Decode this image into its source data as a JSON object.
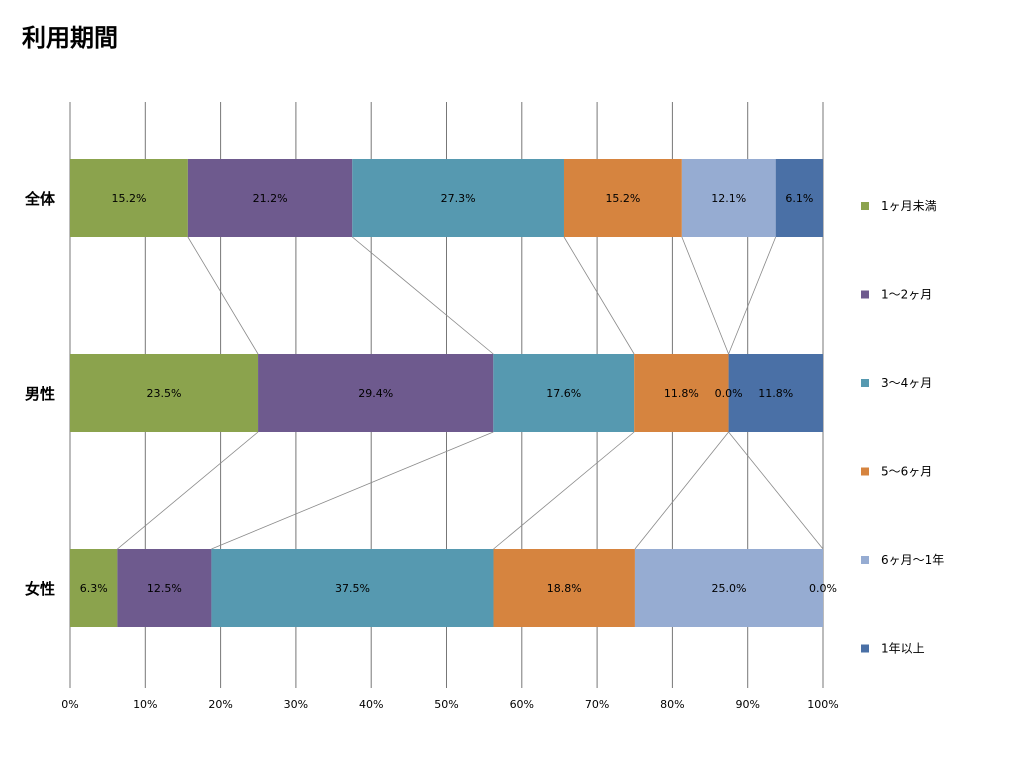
{
  "chart_data": {
    "type": "bar",
    "orientation": "horizontal",
    "stacked": "percent",
    "title": "利用期間",
    "categories": [
      "全体",
      "男性",
      "女性"
    ],
    "series": [
      {
        "name": "1ヶ月未満",
        "color": "#8BA34D",
        "values": [
          15.2,
          23.5,
          6.3
        ]
      },
      {
        "name": "1〜2ヶ月",
        "color": "#6E5A8E",
        "values": [
          21.2,
          29.4,
          12.5
        ]
      },
      {
        "name": "3〜4ヶ月",
        "color": "#5699B0",
        "values": [
          27.3,
          17.6,
          37.5
        ]
      },
      {
        "name": "5〜6ヶ月",
        "color": "#D6843F",
        "values": [
          15.2,
          11.8,
          18.8
        ]
      },
      {
        "name": "6ヶ月〜1年",
        "color": "#96ACD2",
        "values": [
          12.1,
          0.0,
          25.0
        ]
      },
      {
        "name": "1年以上",
        "color": "#4A70A6",
        "values": [
          6.1,
          11.8,
          0.0
        ]
      }
    ],
    "xlim": [
      0,
      100
    ],
    "xticks": [
      "0%",
      "10%",
      "20%",
      "30%",
      "40%",
      "50%",
      "60%",
      "70%",
      "80%",
      "90%",
      "100%"
    ],
    "grid": true,
    "series_lines": true,
    "legend": "right"
  }
}
